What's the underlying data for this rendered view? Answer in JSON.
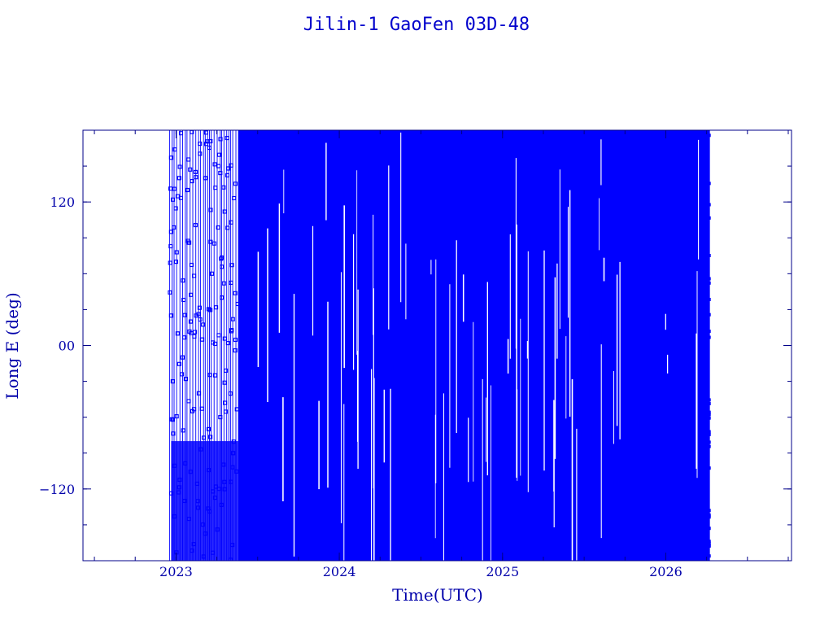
{
  "chart_data": {
    "type": "scatter",
    "title": "Jilin-1 GaoFen 03D-48",
    "xlabel": "Time(UTC)",
    "ylabel": "Long E (deg)",
    "xlim": [
      2022.43,
      2026.77
    ],
    "ylim": [
      -180,
      180
    ],
    "x_major_ticks": [
      2023,
      2024,
      2025,
      2026
    ],
    "x_tick_labels": [
      "2023",
      "2024",
      "2025",
      "2026"
    ],
    "x_minor_step": 0.25,
    "y_major_ticks": [
      120,
      0,
      -120
    ],
    "y_tick_labels": [
      "120",
      "00",
      "−120"
    ],
    "y_minor_step": 30,
    "data_start": 2022.96,
    "data_end": 2026.27,
    "sparse_before": 2023.38,
    "series": [
      {
        "color": "#0000ff",
        "description_points": [
          {
            "x": 2022.97,
            "y": 157
          },
          {
            "x": 2022.97,
            "y": 95
          },
          {
            "x": 2022.97,
            "y": 25
          },
          {
            "x": 2022.98,
            "y": -30
          },
          {
            "x": 2022.98,
            "y": -62
          },
          {
            "x": 2022.99,
            "y": -143
          },
          {
            "x": 2023.0,
            "y": 70
          },
          {
            "x": 2023.01,
            "y": 10
          },
          {
            "x": 2023.02,
            "y": 140
          },
          {
            "x": 2023.04,
            "y": -10
          },
          {
            "x": 2023.06,
            "y": -28
          },
          {
            "x": 2023.07,
            "y": 130
          },
          {
            "x": 2023.09,
            "y": 20
          },
          {
            "x": 2023.1,
            "y": -55
          },
          {
            "x": 2023.12,
            "y": 145
          },
          {
            "x": 2023.14,
            "y": -40
          },
          {
            "x": 2023.16,
            "y": 5
          },
          {
            "x": 2023.18,
            "y": 140
          },
          {
            "x": 2023.2,
            "y": -70
          },
          {
            "x": 2023.22,
            "y": 60
          },
          {
            "x": 2023.24,
            "y": -25
          },
          {
            "x": 2023.26,
            "y": 150
          },
          {
            "x": 2023.28,
            "y": 40
          },
          {
            "x": 2023.3,
            "y": -48
          },
          {
            "x": 2023.32,
            "y": 148
          },
          {
            "x": 2023.34,
            "y": 12
          },
          {
            "x": 2023.35,
            "y": -90
          }
        ]
      }
    ]
  }
}
